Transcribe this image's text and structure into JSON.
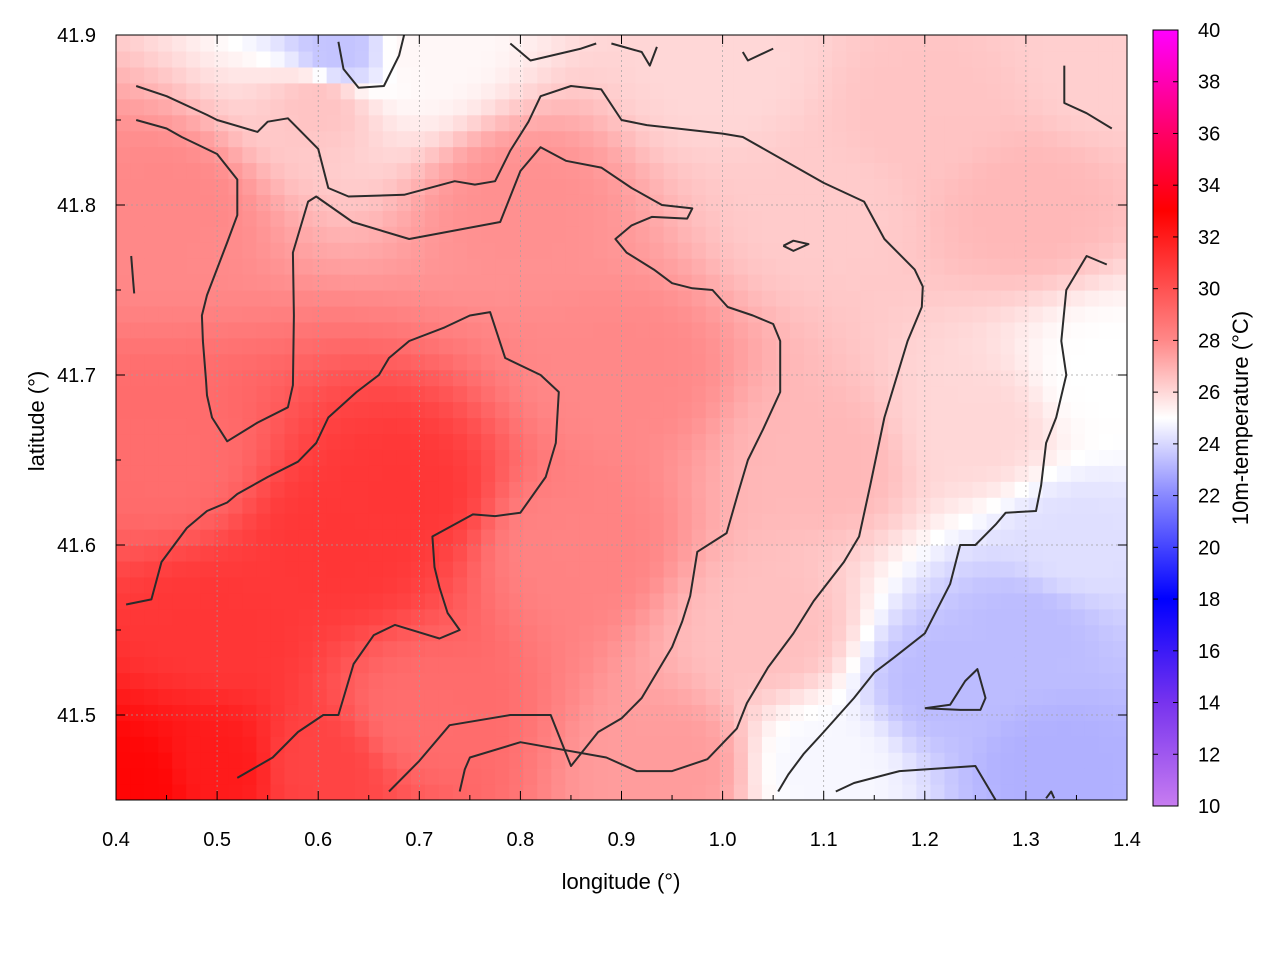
{
  "chart_data": {
    "type": "heatmap",
    "xlabel": "longitude (°)",
    "ylabel": "latitude (°)",
    "colorbar_label": "10m-temperature (°C)",
    "xlim": [
      0.4,
      1.4
    ],
    "ylim": [
      41.45,
      41.9
    ],
    "x_ticks": [
      0.4,
      0.5,
      0.6,
      0.7,
      0.8,
      0.9,
      1.0,
      1.1,
      1.2,
      1.3,
      1.4
    ],
    "x_tick_labels": [
      "0.4",
      "0.5",
      "0.6",
      "0.7",
      "0.8",
      "0.9",
      "1.0",
      "1.1",
      "1.2",
      "1.3",
      "1.4"
    ],
    "y_ticks": [
      41.5,
      41.6,
      41.7,
      41.8,
      41.9
    ],
    "y_tick_labels": [
      "41.5",
      "41.6",
      "41.7",
      "41.8",
      "41.9"
    ],
    "colorbar_range": [
      10,
      40
    ],
    "colorbar_ticks": [
      10,
      12,
      14,
      16,
      18,
      20,
      22,
      24,
      26,
      28,
      30,
      32,
      34,
      36,
      38,
      40
    ],
    "colorbar_tick_labels": [
      "10",
      "12",
      "14",
      "16",
      "18",
      "20",
      "22",
      "24",
      "26",
      "28",
      "30",
      "32",
      "34",
      "36",
      "38",
      "40"
    ],
    "colormap": [
      {
        "value": 10,
        "color": "#c77cf0"
      },
      {
        "value": 14,
        "color": "#7733ee"
      },
      {
        "value": 18,
        "color": "#0000ff"
      },
      {
        "value": 22,
        "color": "#8888ff"
      },
      {
        "value": 25,
        "color": "#ffffff"
      },
      {
        "value": 28,
        "color": "#ff8888"
      },
      {
        "value": 33,
        "color": "#ff0000"
      },
      {
        "value": 36,
        "color": "#ff0066"
      },
      {
        "value": 40,
        "color": "#ff00ff"
      }
    ],
    "grid": true,
    "contour_color": "#2b2b2b",
    "field_anchors": [
      {
        "lon": 0.42,
        "lat": 41.46,
        "temp": 32.8
      },
      {
        "lon": 0.5,
        "lat": 41.47,
        "temp": 32.0
      },
      {
        "lon": 0.6,
        "lat": 41.47,
        "temp": 30.5
      },
      {
        "lon": 0.5,
        "lat": 41.55,
        "temp": 31.0
      },
      {
        "lon": 0.62,
        "lat": 41.6,
        "temp": 31.0
      },
      {
        "lon": 0.68,
        "lat": 41.63,
        "temp": 31.0
      },
      {
        "lon": 0.45,
        "lat": 41.65,
        "temp": 29.0
      },
      {
        "lon": 0.7,
        "lat": 41.5,
        "temp": 29.0
      },
      {
        "lon": 0.85,
        "lat": 41.6,
        "temp": 28.2
      },
      {
        "lon": 0.9,
        "lat": 41.7,
        "temp": 28.0
      },
      {
        "lon": 0.8,
        "lat": 41.8,
        "temp": 27.8
      },
      {
        "lon": 0.45,
        "lat": 41.8,
        "temp": 28.0
      },
      {
        "lon": 0.6,
        "lat": 41.86,
        "temp": 26.5
      },
      {
        "lon": 0.7,
        "lat": 41.89,
        "temp": 25.2
      },
      {
        "lon": 0.62,
        "lat": 41.89,
        "temp": 23.5
      },
      {
        "lon": 1.0,
        "lat": 41.88,
        "temp": 26.0
      },
      {
        "lon": 1.1,
        "lat": 41.8,
        "temp": 26.3
      },
      {
        "lon": 1.2,
        "lat": 41.85,
        "temp": 26.5
      },
      {
        "lon": 1.3,
        "lat": 41.8,
        "temp": 26.8
      },
      {
        "lon": 1.38,
        "lat": 41.88,
        "temp": 26.2
      },
      {
        "lon": 1.1,
        "lat": 41.65,
        "temp": 26.8
      },
      {
        "lon": 1.05,
        "lat": 41.55,
        "temp": 26.6
      },
      {
        "lon": 0.95,
        "lat": 41.47,
        "temp": 27.5
      },
      {
        "lon": 1.1,
        "lat": 41.47,
        "temp": 24.8
      },
      {
        "lon": 1.22,
        "lat": 41.52,
        "temp": 23.3
      },
      {
        "lon": 1.3,
        "lat": 41.55,
        "temp": 23.3
      },
      {
        "lon": 1.35,
        "lat": 41.6,
        "temp": 24.2
      },
      {
        "lon": 1.33,
        "lat": 41.47,
        "temp": 23.0
      },
      {
        "lon": 1.38,
        "lat": 41.7,
        "temp": 25.0
      },
      {
        "lon": 1.25,
        "lat": 41.67,
        "temp": 26.0
      }
    ],
    "contours": [
      [
        [
          0.42,
          41.87
        ],
        [
          0.45,
          41.864
        ],
        [
          0.49,
          41.853
        ],
        [
          0.5,
          41.85
        ],
        [
          0.54,
          41.843
        ],
        [
          0.55,
          41.849
        ],
        [
          0.57,
          41.851
        ],
        [
          0.6,
          41.833
        ],
        [
          0.61,
          41.81
        ],
        [
          0.63,
          41.805
        ],
        [
          0.685,
          41.806
        ],
        [
          0.735,
          41.814
        ],
        [
          0.755,
          41.812
        ],
        [
          0.775,
          41.814
        ],
        [
          0.79,
          41.832
        ],
        [
          0.808,
          41.849
        ],
        [
          0.82,
          41.864
        ],
        [
          0.85,
          41.87
        ],
        [
          0.88,
          41.868
        ],
        [
          0.9,
          41.85
        ],
        [
          0.925,
          41.847
        ],
        [
          1.0,
          41.842
        ],
        [
          1.02,
          41.84
        ],
        [
          1.1,
          41.813
        ],
        [
          1.14,
          41.802
        ],
        [
          1.16,
          41.78
        ],
        [
          1.19,
          41.762
        ],
        [
          1.198,
          41.752
        ],
        [
          1.197,
          41.74
        ],
        [
          1.183,
          41.72
        ],
        [
          1.16,
          41.675
        ],
        [
          1.146,
          41.635
        ],
        [
          1.135,
          41.605
        ],
        [
          1.12,
          41.59
        ],
        [
          1.09,
          41.567
        ],
        [
          1.07,
          41.548
        ],
        [
          1.045,
          41.528
        ],
        [
          1.024,
          41.507
        ],
        [
          1.014,
          41.492
        ],
        [
          0.985,
          41.474
        ],
        [
          0.95,
          41.467
        ],
        [
          0.915,
          41.467
        ],
        [
          0.885,
          41.475
        ],
        [
          0.8,
          41.484
        ],
        [
          0.75,
          41.475
        ],
        [
          0.745,
          41.468
        ],
        [
          0.74,
          41.455
        ]
      ],
      [
        [
          0.42,
          41.85
        ],
        [
          0.45,
          41.845
        ],
        [
          0.465,
          41.84
        ],
        [
          0.5,
          41.83
        ],
        [
          0.52,
          41.815
        ],
        [
          0.52,
          41.794
        ],
        [
          0.51,
          41.778
        ],
        [
          0.49,
          41.747
        ],
        [
          0.485,
          41.735
        ],
        [
          0.486,
          41.72
        ],
        [
          0.489,
          41.697
        ],
        [
          0.49,
          41.688
        ],
        [
          0.495,
          41.675
        ],
        [
          0.51,
          41.661
        ],
        [
          0.54,
          41.672
        ],
        [
          0.57,
          41.681
        ],
        [
          0.575,
          41.694
        ],
        [
          0.576,
          41.735
        ],
        [
          0.575,
          41.772
        ],
        [
          0.59,
          41.802
        ],
        [
          0.598,
          41.805
        ],
        [
          0.634,
          41.79
        ],
        [
          0.69,
          41.78
        ],
        [
          0.78,
          41.79
        ],
        [
          0.8,
          41.82
        ],
        [
          0.82,
          41.834
        ],
        [
          0.845,
          41.826
        ],
        [
          0.88,
          41.822
        ],
        [
          0.91,
          41.81
        ],
        [
          0.94,
          41.8
        ],
        [
          0.97,
          41.798
        ],
        [
          0.965,
          41.792
        ],
        [
          0.93,
          41.793
        ],
        [
          0.91,
          41.788
        ],
        [
          0.894,
          41.78
        ],
        [
          0.905,
          41.772
        ],
        [
          0.932,
          41.762
        ],
        [
          0.95,
          41.754
        ],
        [
          0.97,
          41.751
        ],
        [
          0.99,
          41.75
        ],
        [
          1.005,
          41.74
        ],
        [
          1.03,
          41.735
        ],
        [
          1.05,
          41.73
        ],
        [
          1.057,
          41.72
        ],
        [
          1.057,
          41.69
        ],
        [
          1.04,
          41.668
        ],
        [
          1.025,
          41.65
        ],
        [
          1.015,
          41.63
        ],
        [
          1.004,
          41.607
        ],
        [
          0.975,
          41.596
        ],
        [
          0.968,
          41.57
        ],
        [
          0.96,
          41.555
        ],
        [
          0.95,
          41.54
        ],
        [
          0.92,
          41.51
        ],
        [
          0.9,
          41.498
        ],
        [
          0.877,
          41.49
        ],
        [
          0.85,
          41.47
        ],
        [
          0.83,
          41.5
        ],
        [
          0.79,
          41.5
        ],
        [
          0.73,
          41.494
        ],
        [
          0.7,
          41.473
        ],
        [
          0.67,
          41.455
        ]
      ],
      [
        [
          0.41,
          41.565
        ],
        [
          0.435,
          41.568
        ],
        [
          0.445,
          41.59
        ],
        [
          0.47,
          41.61
        ],
        [
          0.49,
          41.62
        ],
        [
          0.51,
          41.625
        ],
        [
          0.52,
          41.63
        ],
        [
          0.55,
          41.64
        ],
        [
          0.58,
          41.649
        ],
        [
          0.598,
          41.66
        ],
        [
          0.61,
          41.675
        ],
        [
          0.638,
          41.69
        ],
        [
          0.66,
          41.7
        ],
        [
          0.67,
          41.71
        ],
        [
          0.69,
          41.72
        ],
        [
          0.725,
          41.728
        ],
        [
          0.75,
          41.735
        ],
        [
          0.77,
          41.737
        ],
        [
          0.785,
          41.71
        ],
        [
          0.82,
          41.7
        ],
        [
          0.838,
          41.69
        ],
        [
          0.835,
          41.66
        ],
        [
          0.825,
          41.64
        ],
        [
          0.8,
          41.619
        ],
        [
          0.775,
          41.617
        ],
        [
          0.753,
          41.618
        ],
        [
          0.713,
          41.605
        ],
        [
          0.715,
          41.587
        ],
        [
          0.72,
          41.575
        ],
        [
          0.728,
          41.56
        ],
        [
          0.74,
          41.55
        ],
        [
          0.72,
          41.545
        ],
        [
          0.676,
          41.553
        ],
        [
          0.655,
          41.547
        ],
        [
          0.635,
          41.53
        ],
        [
          0.62,
          41.5
        ],
        [
          0.605,
          41.5
        ],
        [
          0.58,
          41.49
        ],
        [
          0.555,
          41.475
        ],
        [
          0.52,
          41.463
        ]
      ],
      [
        [
          0.415,
          41.77
        ],
        [
          0.417,
          41.755
        ],
        [
          0.418,
          41.748
        ]
      ],
      [
        [
          0.62,
          41.896
        ],
        [
          0.625,
          41.88
        ],
        [
          0.64,
          41.869
        ],
        [
          0.665,
          41.87
        ],
        [
          0.68,
          41.888
        ],
        [
          0.685,
          41.9
        ]
      ],
      [
        [
          0.79,
          41.895
        ],
        [
          0.81,
          41.885
        ],
        [
          0.86,
          41.892
        ],
        [
          0.875,
          41.895
        ]
      ],
      [
        [
          0.89,
          41.895
        ],
        [
          0.92,
          41.89
        ],
        [
          0.928,
          41.882
        ],
        [
          0.935,
          41.893
        ]
      ],
      [
        [
          1.02,
          41.89
        ],
        [
          1.025,
          41.885
        ],
        [
          1.05,
          41.892
        ]
      ],
      [
        [
          1.06,
          41.776
        ],
        [
          1.07,
          41.779
        ],
        [
          1.085,
          41.777
        ],
        [
          1.07,
          41.773
        ],
        [
          1.06,
          41.776
        ]
      ],
      [
        [
          1.338,
          41.882
        ],
        [
          1.338,
          41.86
        ],
        [
          1.36,
          41.854
        ],
        [
          1.385,
          41.845
        ]
      ],
      [
        [
          1.38,
          41.765
        ],
        [
          1.36,
          41.77
        ],
        [
          1.34,
          41.75
        ],
        [
          1.335,
          41.72
        ],
        [
          1.34,
          41.7
        ],
        [
          1.33,
          41.675
        ],
        [
          1.32,
          41.66
        ],
        [
          1.315,
          41.635
        ],
        [
          1.31,
          41.62
        ],
        [
          1.28,
          41.619
        ],
        [
          1.27,
          41.612
        ],
        [
          1.25,
          41.6
        ],
        [
          1.235,
          41.6
        ],
        [
          1.225,
          41.577
        ],
        [
          1.2,
          41.548
        ],
        [
          1.17,
          41.534
        ],
        [
          1.15,
          41.525
        ],
        [
          1.13,
          41.51
        ],
        [
          1.1,
          41.49
        ],
        [
          1.08,
          41.477
        ],
        [
          1.065,
          41.465
        ],
        [
          1.055,
          41.455
        ]
      ],
      [
        [
          1.2,
          41.504
        ],
        [
          1.225,
          41.506
        ],
        [
          1.24,
          41.52
        ],
        [
          1.252,
          41.527
        ],
        [
          1.26,
          41.51
        ],
        [
          1.255,
          41.503
        ],
        [
          1.235,
          41.503
        ],
        [
          1.2,
          41.504
        ]
      ],
      [
        [
          1.112,
          41.455
        ],
        [
          1.13,
          41.46
        ],
        [
          1.175,
          41.467
        ],
        [
          1.25,
          41.47
        ],
        [
          1.27,
          41.45
        ]
      ],
      [
        [
          1.32,
          41.451
        ],
        [
          1.325,
          41.455
        ],
        [
          1.328,
          41.451
        ]
      ]
    ]
  }
}
